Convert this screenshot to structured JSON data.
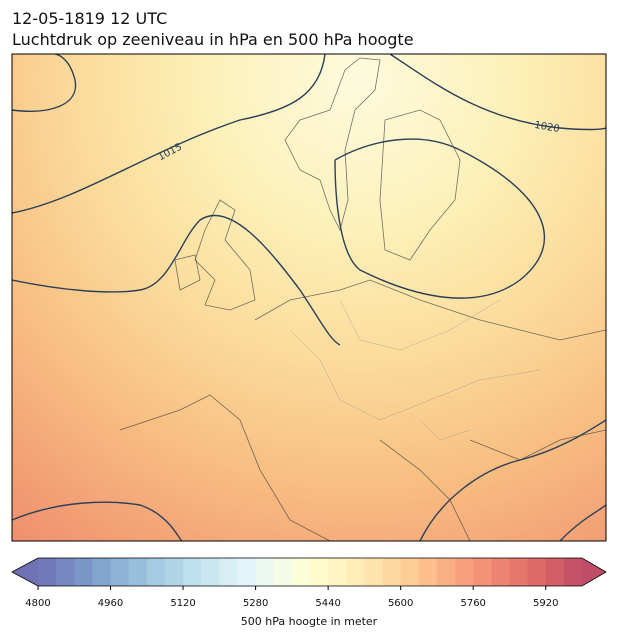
{
  "map": {
    "title": "12-05-1819 12 UTC",
    "subtitle": "Luchtdruk op zeeniveau in hPa en 500 hPa hoogte",
    "contour_labels": [
      1015,
      1020
    ],
    "colorbar": {
      "label": "500 hPa hoogte in meter",
      "lim": [
        4800,
        6000
      ],
      "step": 40,
      "ticks": [
        4800,
        4960,
        5120,
        5280,
        5440,
        5600,
        5760,
        5920
      ],
      "extend": "both"
    }
  }
}
